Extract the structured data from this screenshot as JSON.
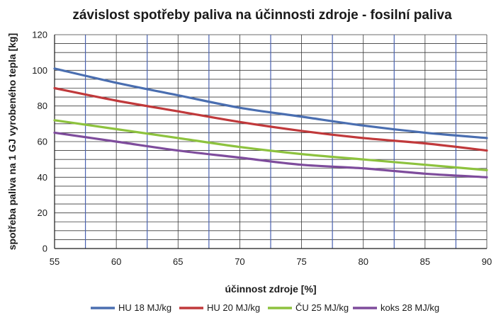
{
  "chart_data": {
    "type": "line",
    "title": "závislost spotřeby paliva na účinnosti zdroje - fosilní paliva",
    "xlabel": "účinnost zdroje [%]",
    "ylabel": "spotřeba paliva na 1 GJ vyrobeného tepla [kg]",
    "xlim": [
      55,
      90
    ],
    "ylim": [
      0,
      120
    ],
    "x_ticks": [
      "55",
      "60",
      "65",
      "70",
      "75",
      "80",
      "85",
      "90"
    ],
    "y_ticks": [
      "0",
      "20",
      "40",
      "60",
      "80",
      "100",
      "120"
    ],
    "x": [
      55,
      60,
      65,
      70,
      75,
      80,
      85,
      90
    ],
    "series": [
      {
        "name": "HU 18 MJ/kg",
        "color": "#4a6eb0",
        "values": [
          101,
          93,
          86,
          79,
          74,
          69,
          65,
          62
        ]
      },
      {
        "name": "HU 20 MJ/kg",
        "color": "#c0393b",
        "values": [
          90,
          83,
          77,
          71,
          66,
          62,
          59,
          55
        ]
      },
      {
        "name": "ČU 25 MJ/kg",
        "color": "#8dc23e",
        "values": [
          72,
          67,
          62,
          57,
          53,
          50,
          47,
          44
        ]
      },
      {
        "name": "koks 28 MJ/kg",
        "color": "#7e4c9c",
        "values": [
          65,
          60,
          55,
          51,
          47,
          45,
          42,
          40
        ]
      }
    ],
    "grid": true,
    "legend_position": "bottom"
  }
}
